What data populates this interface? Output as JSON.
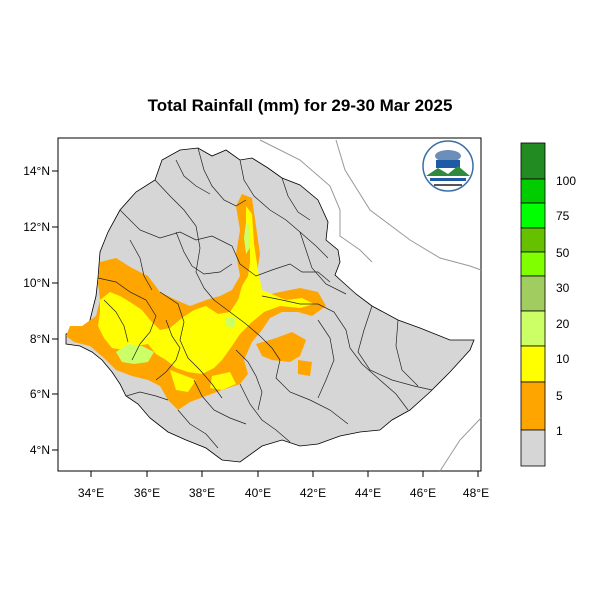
{
  "title": "Total Rainfall (mm) for 29-30 Mar 2025",
  "map": {
    "lon_labels": [
      "34°E",
      "36°E",
      "38°E",
      "40°E",
      "42°E",
      "44°E",
      "46°E",
      "48°E"
    ],
    "lat_labels": [
      "14°N",
      "12°N",
      "10°N",
      "8°N",
      "6°N",
      "4°N"
    ],
    "lon_range": [
      32.7,
      48.1
    ],
    "lat_range": [
      3.2,
      15.0
    ]
  },
  "legend": {
    "levels": [
      "1",
      "5",
      "10",
      "20",
      "30",
      "50",
      "75",
      "100"
    ],
    "colors": [
      "#d6d6d6",
      "#ffa500",
      "#ffff00",
      "#ccff66",
      "#a0cc60",
      "#7fff00",
      "#66c000",
      "#00ff00",
      "#00cc00",
      "#228b22"
    ]
  },
  "colors": {
    "country_fill": "#d6d6d6",
    "orange": "#ffa500",
    "yellow": "#ffff00",
    "light_green": "#ccff66"
  },
  "logo": {
    "icon": "ethiopian-meteorology-institute-logo"
  }
}
